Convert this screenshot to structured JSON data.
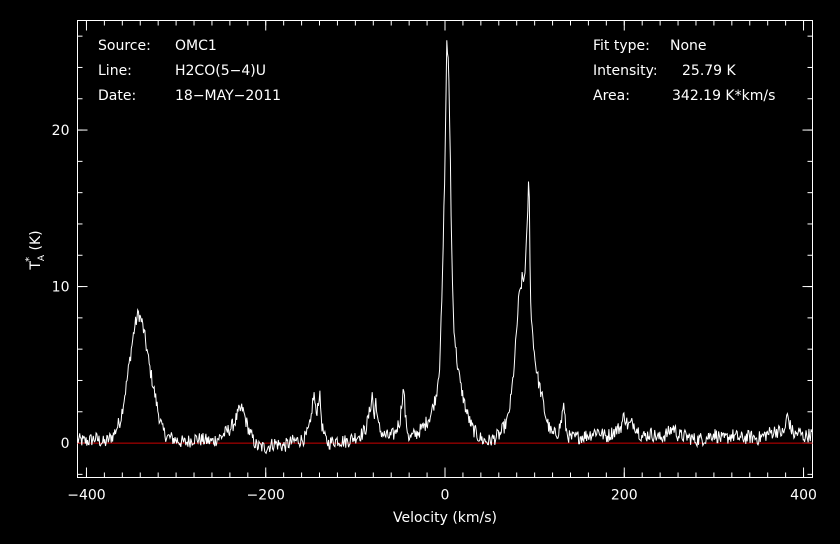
{
  "header": {
    "source_label": "Source:",
    "source_value": "OMC1",
    "line_label": "Line:",
    "line_value": "H2CO(5−4)U",
    "date_label": "Date:",
    "date_value": "18−MAY−2011",
    "fit_label": "Fit type:",
    "fit_value": "None",
    "intensity_label": "Intensity:",
    "intensity_value": "25.79 K",
    "area_label": "Area:",
    "area_value": "342.19 K*km/s"
  },
  "colors": {
    "background": "#000000",
    "foreground": "#ffffff",
    "baseline": "#cc0000"
  },
  "chart_data": {
    "type": "line",
    "xlabel": "Velocity (km/s)",
    "ylabel": "T_A^* (K)",
    "xlim": [
      -410,
      410
    ],
    "ylim": [
      -2.2,
      27
    ],
    "x_ticks_major": [
      -400,
      -200,
      0,
      200,
      400
    ],
    "y_ticks_major": [
      0,
      10,
      20
    ],
    "x_minor_step": 20,
    "y_minor_step": 2,
    "grid": false,
    "legend": "none",
    "baseline_y": 0,
    "series": [
      {
        "x": [
          -410,
          -400,
          -390,
          -380,
          -370,
          -362,
          -356,
          -350,
          -346,
          -342,
          -338,
          -334,
          -330,
          -325,
          -320,
          -315,
          -310,
          -300,
          -290,
          -280,
          -270,
          -260,
          -250,
          -240,
          -235,
          -230,
          -226,
          -222,
          -218,
          -214,
          -210,
          -200,
          -190,
          -180,
          -170,
          -160,
          -155,
          -150,
          -148,
          -146,
          -144,
          -142,
          -140,
          -137,
          -134,
          -130,
          -120,
          -110,
          -100,
          -92,
          -88,
          -84,
          -81,
          -79,
          -77,
          -75,
          -72,
          -68,
          -62,
          -56,
          -50,
          -48,
          -46,
          -44,
          -40,
          -32,
          -24,
          -16,
          -10,
          -6,
          -3,
          0,
          2,
          4,
          6,
          7,
          8,
          9,
          10,
          12,
          14,
          17,
          20,
          24,
          30,
          36,
          42,
          48,
          55,
          62,
          70,
          74,
          78,
          82,
          86,
          88,
          90,
          92,
          93,
          94,
          95,
          96,
          98,
          100,
          104,
          108,
          112,
          116,
          120,
          126,
          130,
          132,
          134,
          136,
          140,
          150,
          160,
          170,
          180,
          190,
          196,
          200,
          204,
          210,
          220,
          230,
          240,
          250,
          255,
          260,
          270,
          280,
          290,
          300,
          310,
          320,
          330,
          340,
          350,
          360,
          370,
          378,
          382,
          386,
          390,
          395,
          400,
          410
        ],
        "y": [
          0.2,
          0.1,
          0.3,
          0.0,
          0.5,
          1.5,
          3.5,
          6.0,
          7.5,
          8.3,
          7.7,
          6.5,
          5.0,
          3.5,
          2.0,
          0.8,
          0.4,
          0.2,
          0.0,
          0.3,
          0.2,
          0.1,
          0.4,
          0.9,
          1.3,
          2.0,
          2.2,
          1.4,
          0.7,
          0.2,
          -0.2,
          -0.3,
          0.0,
          -0.2,
          0.1,
          0.2,
          0.4,
          1.2,
          2.5,
          3.1,
          1.8,
          2.4,
          3.2,
          1.0,
          0.3,
          0.0,
          0.2,
          0.1,
          0.4,
          0.6,
          1.0,
          2.0,
          3.2,
          1.4,
          3.0,
          1.2,
          0.8,
          0.5,
          0.4,
          0.6,
          1.5,
          2.8,
          3.5,
          1.5,
          0.3,
          0.6,
          1.0,
          1.8,
          3.0,
          5.0,
          10.0,
          18.0,
          25.79,
          24.0,
          18.0,
          14.0,
          11.0,
          9.0,
          7.5,
          6.0,
          5.0,
          3.8,
          3.0,
          2.0,
          1.0,
          0.5,
          0.2,
          0.1,
          0.3,
          0.6,
          1.5,
          3.0,
          5.5,
          9.0,
          10.5,
          10.3,
          11.8,
          14.0,
          16.7,
          15.5,
          11.0,
          8.0,
          7.0,
          5.5,
          4.0,
          3.0,
          1.8,
          1.0,
          0.5,
          0.7,
          1.4,
          2.6,
          1.4,
          0.6,
          0.3,
          0.4,
          0.5,
          0.8,
          0.4,
          0.8,
          1.0,
          1.8,
          1.1,
          1.3,
          0.4,
          0.6,
          0.3,
          0.7,
          1.0,
          0.5,
          0.4,
          0.2,
          0.3,
          0.6,
          0.2,
          0.5,
          0.3,
          0.4,
          0.3,
          0.6,
          0.8,
          0.6,
          1.8,
          0.9,
          0.5,
          0.7,
          0.4,
          0.6
        ]
      }
    ]
  }
}
